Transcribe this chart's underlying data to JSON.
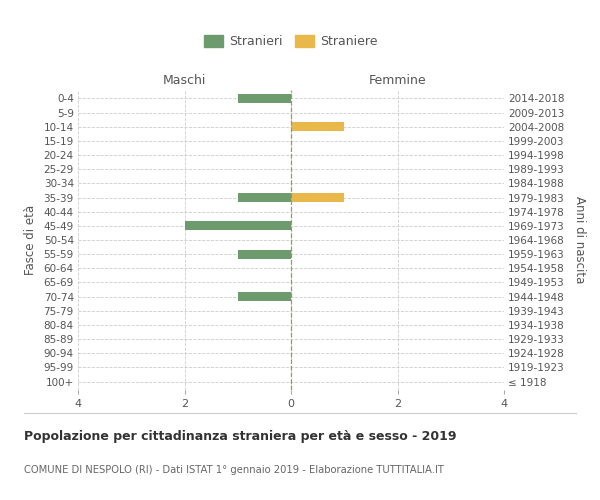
{
  "age_groups": [
    "100+",
    "95-99",
    "90-94",
    "85-89",
    "80-84",
    "75-79",
    "70-74",
    "65-69",
    "60-64",
    "55-59",
    "50-54",
    "45-49",
    "40-44",
    "35-39",
    "30-34",
    "25-29",
    "20-24",
    "15-19",
    "10-14",
    "5-9",
    "0-4"
  ],
  "birth_years": [
    "≤ 1918",
    "1919-1923",
    "1924-1928",
    "1929-1933",
    "1934-1938",
    "1939-1943",
    "1944-1948",
    "1949-1953",
    "1954-1958",
    "1959-1963",
    "1964-1968",
    "1969-1973",
    "1974-1978",
    "1979-1983",
    "1984-1988",
    "1989-1993",
    "1994-1998",
    "1999-2003",
    "2004-2008",
    "2009-2013",
    "2014-2018"
  ],
  "maschi": [
    0,
    0,
    0,
    0,
    0,
    0,
    -1,
    0,
    0,
    -1,
    0,
    -2,
    0,
    -1,
    0,
    0,
    0,
    0,
    0,
    0,
    -1
  ],
  "femmine": [
    0,
    0,
    0,
    0,
    0,
    0,
    0,
    0,
    0,
    0,
    0,
    0,
    0,
    1,
    0,
    0,
    0,
    0,
    1,
    0,
    0
  ],
  "color_maschi": "#6e9b6e",
  "color_femmine": "#e8b84b",
  "title_main": "Popolazione per cittadinanza straniera per età e sesso - 2019",
  "title_sub": "COMUNE DI NESPOLO (RI) - Dati ISTAT 1° gennaio 2019 - Elaborazione TUTTITALIA.IT",
  "xlabel_left": "Maschi",
  "xlabel_right": "Femmine",
  "ylabel_left": "Fasce di età",
  "ylabel_right": "Anni di nascita",
  "legend_maschi": "Stranieri",
  "legend_femmine": "Straniere",
  "xlim": [
    -4,
    4
  ],
  "xticks": [
    -4,
    -2,
    0,
    2,
    4
  ],
  "xticklabels": [
    "4",
    "2",
    "0",
    "2",
    "4"
  ],
  "bg_color": "#ffffff",
  "grid_color": "#cccccc",
  "bar_height": 0.65
}
